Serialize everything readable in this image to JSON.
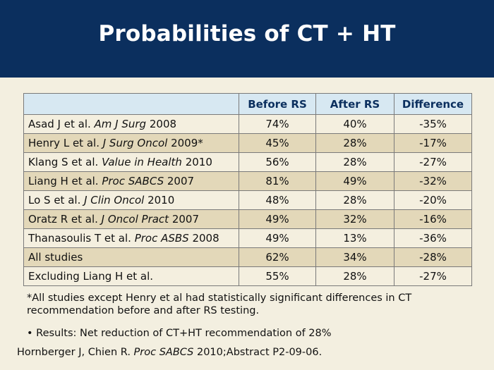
{
  "title": "Probabilities of CT + HT",
  "table": {
    "headers": [
      "",
      "Before RS",
      "After RS",
      "Difference"
    ],
    "rows": [
      {
        "author": "Asad J et al. ",
        "journal": "Am J Surg",
        "year": " 2008",
        "before": "74%",
        "after": "40%",
        "diff": "-35%"
      },
      {
        "author": "Henry L et al. ",
        "journal": "J Surg Oncol",
        "year": " 2009*",
        "before": "45%",
        "after": "28%",
        "diff": "-17%"
      },
      {
        "author": "Klang S et al. ",
        "journal": "Value in Health",
        "year": " 2010",
        "before": "56%",
        "after": "28%",
        "diff": "-27%"
      },
      {
        "author": "Liang H et al. ",
        "journal": "Proc SABCS",
        "year": " 2007",
        "before": "81%",
        "after": "49%",
        "diff": "-32%"
      },
      {
        "author": "Lo S et al. ",
        "journal": "J Clin Oncol",
        "year": " 2010",
        "before": "48%",
        "after": "28%",
        "diff": "-20%"
      },
      {
        "author": "Oratz R et al. ",
        "journal": "J Oncol Pract",
        "year": " 2007",
        "before": "49%",
        "after": "32%",
        "diff": "-16%"
      },
      {
        "author": "Thanasoulis T et al. ",
        "journal": "Proc ASBS",
        "year": " 2008",
        "before": "49%",
        "after": "13%",
        "diff": "-36%"
      },
      {
        "author": "All studies",
        "journal": "",
        "year": "",
        "before": "62%",
        "after": "34%",
        "diff": "-28%"
      },
      {
        "author": "Excluding Liang H et al.",
        "journal": "",
        "year": "",
        "before": "55%",
        "after": "28%",
        "diff": "-27%"
      }
    ]
  },
  "footnote": "*All studies except Henry et al had statistically significant differences in CT recommendation before and after RS testing.",
  "bullet": "• Results: Net reduction of CT+HT recommendation of 28%",
  "reference": {
    "authors": "Hornberger J, Chien R. ",
    "journal": "Proc SABCS",
    "rest": " 2010;Abstract P2-09-06."
  }
}
